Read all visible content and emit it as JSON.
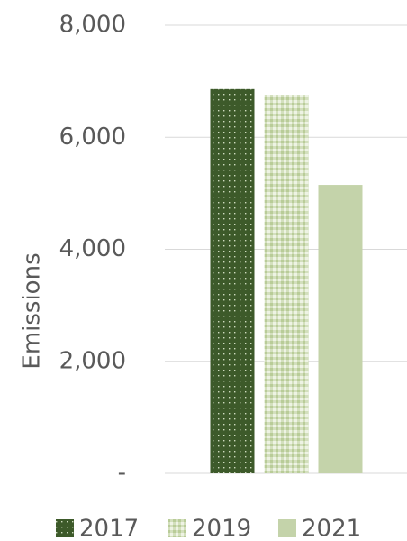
{
  "chart_data": {
    "type": "bar",
    "y_label": "Emissions",
    "categories": [
      null
    ],
    "series": [
      {
        "name": "2017",
        "color": "#3d5a2a",
        "values": [
          6860
        ]
      },
      {
        "name": "2019",
        "color": "#d3dfbd",
        "values": [
          6760
        ]
      },
      {
        "name": "2021",
        "color": "#c4d3aa",
        "values": [
          5150
        ]
      }
    ],
    "ylim": [
      0,
      8000
    ],
    "yticks": [
      {
        "value": 0,
        "label": "-"
      },
      {
        "value": 2000,
        "label": "2,000"
      },
      {
        "value": 4000,
        "label": "4,000"
      },
      {
        "value": 6000,
        "label": "6,000"
      },
      {
        "value": 8000,
        "label": "8,000"
      }
    ],
    "grid": true,
    "legend": "bottom"
  }
}
